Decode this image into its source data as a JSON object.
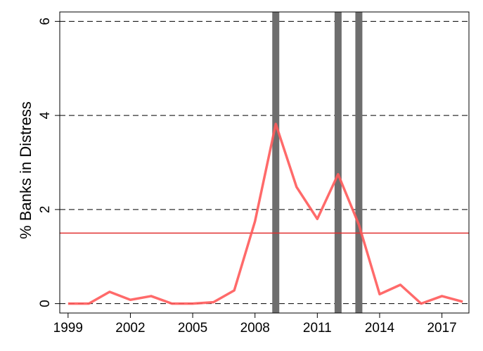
{
  "chart_data": {
    "type": "line",
    "y_label": "% Banks in Distress",
    "x": [
      1999,
      2000,
      2001,
      2002,
      2003,
      2004,
      2005,
      2006,
      2007,
      2008,
      2009,
      2010,
      2011,
      2012,
      2013,
      2014,
      2015,
      2016,
      2017,
      2018
    ],
    "series": [
      {
        "name": "Banks in Distress",
        "color": "#ff5a5a",
        "values": [
          0,
          0,
          0.25,
          0.08,
          0.16,
          0,
          0,
          0.03,
          0.28,
          1.75,
          3.82,
          2.48,
          1.8,
          2.75,
          1.68,
          0.2,
          0.4,
          0,
          0.16,
          0.04
        ]
      }
    ],
    "xlim": [
      1998.6,
      2018.3
    ],
    "xticks": [
      1999,
      2002,
      2005,
      2008,
      2011,
      2014,
      2017
    ],
    "ylim": [
      -0.2,
      6.2
    ],
    "yticks": [
      0,
      2,
      4,
      6
    ],
    "grid": true,
    "reference_line": {
      "value": 1.5,
      "color": "#e03030"
    },
    "highlight_years": {
      "values": [
        2009,
        2012,
        2013
      ],
      "color": "#6e6e6e"
    }
  }
}
